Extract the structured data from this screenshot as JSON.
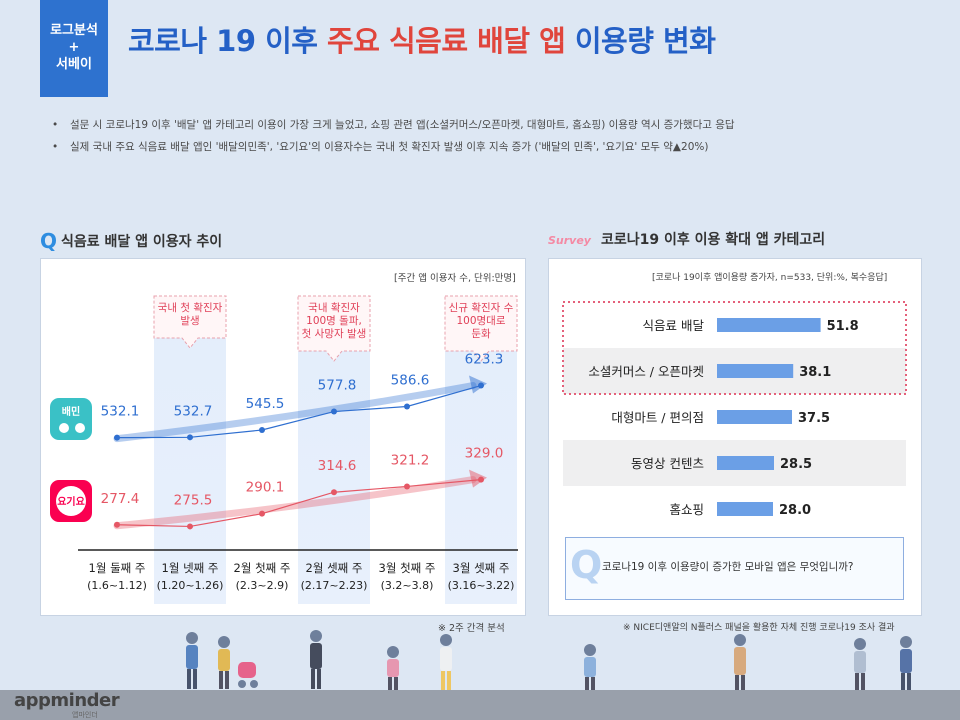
{
  "badge": {
    "line1": "로그분석",
    "line2": "+",
    "line3": "서베이"
  },
  "title": {
    "part1": "코로나 19 이후 ",
    "highlight": "주요 식음료 배달 앱",
    "part2": " 이용량 변화"
  },
  "bullets": [
    "설문 시 코로나19 이후 '배달' 앱 카테고리 이용이 가장 크게 늘었고, 쇼핑 관련 앱(소셜커머스/오픈마켓, 대형마트, 홈쇼핑) 이용량 역시 증가했다고 응답",
    "실제 국내 주요 식음료 배달 앱인 '배달의민족', '요기요'의 이용자수는 국내 첫 확진자 발생 이후 지속 증가 ('배달의 민족', '요기요' 모두 약▲20%)"
  ],
  "left": {
    "icon": "magnifier-icon",
    "title": "식음료 배달 앱 이용자 추이",
    "unit_note": "[주간 앱 이용자 수, 단위:만명]",
    "footnote": "※ 2주 간격 분석",
    "app_icon_1": "배민",
    "app_icon_2": "요기요"
  },
  "right": {
    "logo": "Survey",
    "title": "코로나19 이후 이용 확대 앱 카테고리",
    "unit_note": "[코로나 19이후 앱이용량 증가자, n=533, 단위:%, 복수응답]",
    "question": "코로나19 이후 이용량이 증가한 모바일 앱은 무엇입니까?",
    "footnote": "※ NICE디앤알의 N플러스 패널을 활용한 자체 진행 코로나19 조사 결과"
  },
  "footer": {
    "logo": "appminder",
    "logo_sub": "앱마인더"
  },
  "chart_data": [
    {
      "type": "line",
      "categories": [
        "1월 둘째 주",
        "1월 넷째 주",
        "2월 첫째 주",
        "2월 셋째 주",
        "3월 첫째 주",
        "3월 셋째 주"
      ],
      "category_sub": [
        "(1.6~1.12)",
        "(1.20~1.26)",
        "(2.3~2.9)",
        "(2.17~2.23)",
        "(3.2~3.8)",
        "(3.16~3.22)"
      ],
      "series": [
        {
          "name": "배민",
          "values": [
            532.1,
            532.7,
            545.5,
            577.8,
            586.6,
            623.3
          ],
          "color": "#2f6fd0"
        },
        {
          "name": "요기요",
          "values": [
            277.4,
            275.5,
            290.1,
            314.6,
            321.2,
            329.0
          ],
          "color": "#e55765"
        }
      ],
      "annotations": [
        {
          "category_index": 1,
          "lines": [
            "국내 첫 확진자",
            "발생"
          ]
        },
        {
          "category_index": 3,
          "lines": [
            "국내 확진자",
            "100명 돌파,",
            "첫 사망자 발생"
          ]
        },
        {
          "category_index": 5,
          "lines": [
            "신규 확진자 수",
            "100명대로",
            "둔화"
          ]
        }
      ],
      "highlighted_columns": [
        1,
        3,
        5
      ]
    },
    {
      "type": "bar",
      "orientation": "horizontal",
      "categories": [
        "식음료 배달",
        "소셜커머스 / 오픈마켓",
        "대형마트 / 편의점",
        "동영상 컨텐츠",
        "홈쇼핑"
      ],
      "values": [
        51.8,
        38.1,
        37.5,
        28.5,
        28.0
      ],
      "bar_color": "#6b9fe6",
      "highlighted_categories": [
        0,
        1
      ]
    }
  ]
}
